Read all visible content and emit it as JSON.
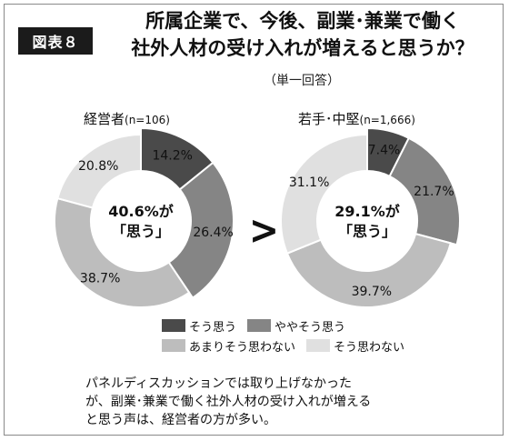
{
  "figure_label": "図表８",
  "title_line1": "所属企業で、今後、副業･兼業で働く",
  "title_line2": "社外人材の受け入れが増えると思うか？",
  "subtitle": "（単一回答）",
  "greater_sign": ">",
  "chart_data": [
    {
      "type": "pie",
      "title": "経営者",
      "n_label": "(n=106)",
      "center_line1": "40.6%が",
      "center_line2": "「思う」",
      "categories": [
        "そう思う",
        "ややそう思う",
        "あまりそう思わない",
        "そう思わない"
      ],
      "values": [
        14.2,
        26.4,
        38.7,
        20.8
      ],
      "value_labels": [
        "14.2%",
        "26.4%",
        "38.7%",
        "20.8%"
      ]
    },
    {
      "type": "pie",
      "title": "若手･中堅",
      "n_label": "(n=1,666)",
      "center_line1": "29.1%が",
      "center_line2": "「思う」",
      "categories": [
        "そう思う",
        "ややそう思う",
        "あまりそう思わない",
        "そう思わない"
      ],
      "values": [
        7.4,
        21.7,
        39.7,
        31.1
      ],
      "value_labels": [
        "7.4%",
        "21.7%",
        "39.7%",
        "31.1%"
      ]
    }
  ],
  "legend": [
    {
      "label": "そう思う",
      "color": "#4a4a4a"
    },
    {
      "label": "ややそう思う",
      "color": "#858585"
    },
    {
      "label": "あまりそう思わない",
      "color": "#bdbdbd"
    },
    {
      "label": "そう思わない",
      "color": "#e0e0e0"
    }
  ],
  "note_lines": [
    "パネルディスカッションでは取り上げなかった",
    "が、副業･兼業で働く社外人材の受け入れが増える",
    "と思う声は、経営者の方が多い。"
  ]
}
